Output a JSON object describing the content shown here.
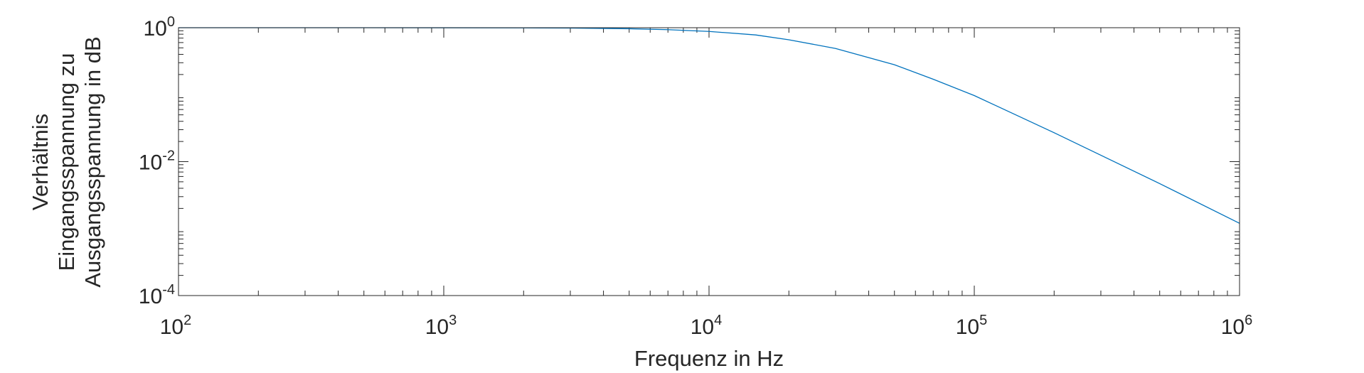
{
  "chart_data": {
    "type": "line",
    "title": "",
    "xlabel": "Frequenz in Hz",
    "ylabel": [
      "Verhältnis",
      "Eingangsspannung zu",
      "Ausgangsspannung in dB"
    ],
    "x_scale": "log",
    "y_scale": "log",
    "xlim": [
      100,
      1000000
    ],
    "ylim": [
      0.0001,
      1
    ],
    "x_ticks": [
      {
        "base": "10",
        "exp": "2",
        "value": 100
      },
      {
        "base": "10",
        "exp": "3",
        "value": 1000
      },
      {
        "base": "10",
        "exp": "4",
        "value": 10000
      },
      {
        "base": "10",
        "exp": "5",
        "value": 100000
      },
      {
        "base": "10",
        "exp": "6",
        "value": 1000000
      }
    ],
    "y_ticks": [
      {
        "base": "10",
        "exp": "0",
        "value": 1
      },
      {
        "base": "10",
        "exp": "-2",
        "value": 0.01
      },
      {
        "base": "10",
        "exp": "-4",
        "value": 0.0001
      }
    ],
    "grid": false,
    "series": [
      {
        "color": "#0072BD",
        "x": [
          100,
          200,
          500,
          1000,
          2000,
          3000,
          5000,
          7000,
          10000,
          15000,
          20000,
          30000,
          50000,
          70000,
          100000,
          200000,
          500000,
          1000000
        ],
        "y": [
          1.0,
          1.0,
          1.0,
          0.999,
          0.995,
          0.988,
          0.965,
          0.935,
          0.88,
          0.78,
          0.66,
          0.49,
          0.28,
          0.17,
          0.097,
          0.027,
          0.0047,
          0.0012
        ]
      }
    ]
  }
}
